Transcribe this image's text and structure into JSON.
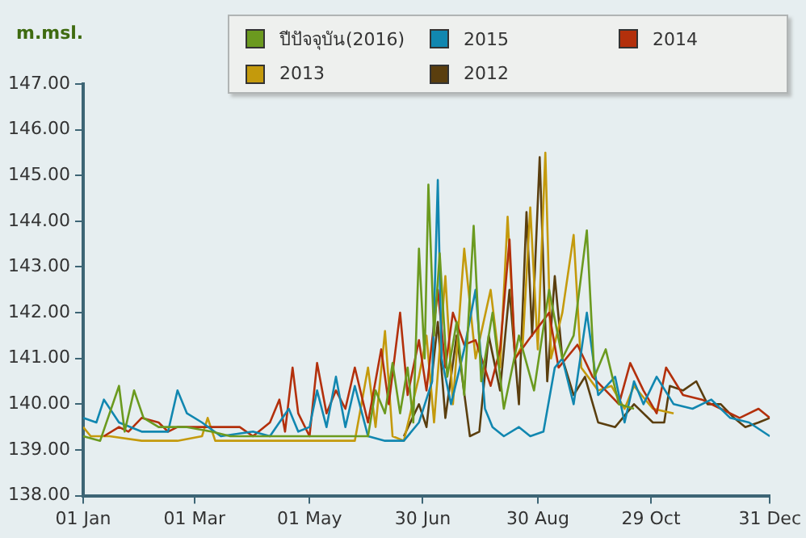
{
  "chart_data": {
    "type": "line",
    "ylabel": "m.msl.",
    "legend": "top right",
    "grid": false,
    "marker": "none",
    "line_style": "solid",
    "xlim": [
      "--01-01",
      "--12-31"
    ],
    "xticks": [
      {
        "value": "--01-01",
        "label": "01 Jan"
      },
      {
        "value": "--03-01",
        "label": "01 Mar"
      },
      {
        "value": "--05-01",
        "label": "01 May"
      },
      {
        "value": "--06-30",
        "label": "30 Jun"
      },
      {
        "value": "--08-30",
        "label": "30 Aug"
      },
      {
        "value": "--10-29",
        "label": "29 Oct"
      },
      {
        "value": "--12-31",
        "label": "31 Dec"
      }
    ],
    "ylim": [
      138,
      147
    ],
    "yticks": [
      {
        "value": 138,
        "label": "138.00"
      },
      {
        "value": 139,
        "label": "139.00"
      },
      {
        "value": 140,
        "label": "140.00"
      },
      {
        "value": 141,
        "label": "141.00"
      },
      {
        "value": 142,
        "label": "142.00"
      },
      {
        "value": 143,
        "label": "143.00"
      },
      {
        "value": 144,
        "label": "144.00"
      },
      {
        "value": 145,
        "label": "145.00"
      },
      {
        "value": 146,
        "label": "146.00"
      },
      {
        "value": 147,
        "label": "147.00"
      }
    ],
    "series": [
      {
        "name": "ปีปัจจุบัน(2016)",
        "color": "#6b9a1f",
        "x": [
          "--01-01",
          "--01-10",
          "--01-20",
          "--01-23",
          "--01-28",
          "--02-02",
          "--02-10",
          "--02-25",
          "--03-10",
          "--03-20",
          "--04-20",
          "--05-20",
          "--06-01",
          "--06-05",
          "--06-10",
          "--06-14",
          "--06-18",
          "--06-22",
          "--06-25",
          "--06-28",
          "--07-01",
          "--07-03",
          "--07-06",
          "--07-09",
          "--07-13",
          "--07-18",
          "--07-22",
          "--07-27",
          "--07-31",
          "--08-06",
          "--08-12",
          "--08-20",
          "--08-28",
          "--09-05",
          "--09-12",
          "--09-18",
          "--09-25",
          "--09-29",
          "--10-05",
          "--10-12",
          "--10-20"
        ],
        "values": [
          139.3,
          139.2,
          140.4,
          139.4,
          140.3,
          139.7,
          139.5,
          139.5,
          139.4,
          139.3,
          139.3,
          139.3,
          139.3,
          140.3,
          139.8,
          140.9,
          139.8,
          140.8,
          139.6,
          143.4,
          141.0,
          144.8,
          141.5,
          143.3,
          140.6,
          141.8,
          140.2,
          143.9,
          140.5,
          142.0,
          139.9,
          141.5,
          140.3,
          142.5,
          141.0,
          141.5,
          143.8,
          140.6,
          141.2,
          140.0,
          139.9
        ]
      },
      {
        "name": "2015",
        "color": "#1187b0",
        "x": [
          "--01-01",
          "--01-08",
          "--01-12",
          "--01-20",
          "--02-01",
          "--02-15",
          "--02-20",
          "--02-25",
          "--03-05",
          "--03-15",
          "--04-01",
          "--04-10",
          "--04-20",
          "--04-25",
          "--05-01",
          "--05-05",
          "--05-10",
          "--05-15",
          "--05-20",
          "--05-25",
          "--06-01",
          "--06-10",
          "--06-20",
          "--06-28",
          "--07-05",
          "--07-08",
          "--07-10",
          "--07-15",
          "--07-22",
          "--07-28",
          "--08-02",
          "--08-06",
          "--08-12",
          "--08-20",
          "--08-26",
          "--09-02",
          "--09-08",
          "--09-12",
          "--09-18",
          "--09-25",
          "--10-01",
          "--10-10",
          "--10-15",
          "--10-20",
          "--10-25",
          "--11-01",
          "--11-10",
          "--11-20",
          "--11-30",
          "--12-10",
          "--12-20",
          "--12-31"
        ],
        "values": [
          139.7,
          139.6,
          140.1,
          139.6,
          139.4,
          139.4,
          140.3,
          139.8,
          139.6,
          139.3,
          139.4,
          139.3,
          139.9,
          139.4,
          139.5,
          140.3,
          139.5,
          140.6,
          139.5,
          140.4,
          139.3,
          139.2,
          139.2,
          139.6,
          140.5,
          144.9,
          141.0,
          140.0,
          141.2,
          142.5,
          139.9,
          139.5,
          139.3,
          139.5,
          139.3,
          139.4,
          140.8,
          141.0,
          140.0,
          142.0,
          140.2,
          140.6,
          139.6,
          140.5,
          140.0,
          140.6,
          140.0,
          139.9,
          140.1,
          139.7,
          139.6,
          139.3
        ]
      },
      {
        "name": "2014",
        "color": "#b3300c",
        "x": [
          "--01-12",
          "--01-20",
          "--01-25",
          "--02-01",
          "--02-10",
          "--02-15",
          "--02-20",
          "--03-10",
          "--03-25",
          "--04-01",
          "--04-10",
          "--04-15",
          "--04-18",
          "--04-22",
          "--04-25",
          "--05-01",
          "--05-05",
          "--05-10",
          "--05-15",
          "--05-20",
          "--05-25",
          "--06-01",
          "--06-08",
          "--06-12",
          "--06-18",
          "--06-22",
          "--06-28",
          "--07-02",
          "--07-08",
          "--07-12",
          "--07-16",
          "--07-22",
          "--07-28",
          "--08-05",
          "--08-10",
          "--08-15",
          "--08-18",
          "--08-25",
          "--09-05",
          "--09-10",
          "--09-20",
          "--09-28",
          "--10-05",
          "--10-12",
          "--10-18",
          "--10-25",
          "--11-01",
          "--11-06",
          "--11-15",
          "--11-25",
          "--12-05",
          "--12-15",
          "--12-25",
          "--12-31"
        ],
        "values": [
          139.3,
          139.5,
          139.4,
          139.7,
          139.6,
          139.4,
          139.5,
          139.5,
          139.5,
          139.3,
          139.6,
          140.1,
          139.4,
          140.8,
          139.8,
          139.3,
          140.9,
          139.8,
          140.3,
          139.9,
          140.8,
          139.6,
          141.2,
          140.0,
          142.0,
          140.2,
          141.4,
          140.3,
          142.5,
          140.8,
          142.0,
          141.3,
          141.4,
          140.4,
          141.2,
          143.6,
          141.0,
          141.4,
          142.0,
          140.8,
          141.3,
          140.6,
          140.3,
          140.0,
          140.9,
          140.3,
          139.8,
          140.8,
          140.2,
          140.1,
          139.9,
          139.7,
          139.9,
          139.7
        ]
      },
      {
        "name": "2013",
        "color": "#c49a0c",
        "x": [
          "--01-01",
          "--01-05",
          "--01-15",
          "--02-01",
          "--02-20",
          "--03-05",
          "--03-08",
          "--03-12",
          "--04-01",
          "--05-01",
          "--05-25",
          "--06-01",
          "--06-05",
          "--06-10",
          "--06-14",
          "--06-20",
          "--06-28",
          "--07-02",
          "--07-06",
          "--07-12",
          "--07-16",
          "--07-22",
          "--07-28",
          "--08-05",
          "--08-10",
          "--08-14",
          "--08-18",
          "--08-22",
          "--08-26",
          "--08-30",
          "--09-03",
          "--09-06",
          "--09-12",
          "--09-18",
          "--09-22",
          "--10-01",
          "--10-08",
          "--10-15",
          "--10-20",
          "--10-30",
          "--11-10"
        ],
        "values": [
          139.5,
          139.3,
          139.3,
          139.2,
          139.2,
          139.3,
          139.7,
          139.2,
          139.2,
          139.2,
          139.2,
          140.8,
          139.5,
          141.6,
          139.3,
          139.2,
          140.6,
          141.5,
          139.6,
          142.8,
          140.0,
          143.4,
          141.0,
          142.5,
          140.8,
          144.1,
          141.0,
          141.3,
          144.3,
          141.2,
          145.5,
          141.0,
          142.0,
          143.7,
          140.8,
          140.3,
          140.4,
          139.9,
          140.4,
          139.9,
          139.8
        ]
      },
      {
        "name": "2012",
        "color": "#5a3e0e",
        "x": [
          "--06-20",
          "--06-28",
          "--07-02",
          "--07-08",
          "--07-12",
          "--07-18",
          "--07-25",
          "--07-30",
          "--08-04",
          "--08-10",
          "--08-15",
          "--08-20",
          "--08-24",
          "--08-27",
          "--08-31",
          "--09-04",
          "--09-08",
          "--09-12",
          "--09-18",
          "--09-24",
          "--10-01",
          "--10-10",
          "--10-20",
          "--10-30",
          "--11-05",
          "--11-08",
          "--11-15",
          "--11-22",
          "--11-28",
          "--12-05",
          "--12-12",
          "--12-18",
          "--12-25",
          "--12-31"
        ],
        "values": [
          139.3,
          140.0,
          139.5,
          141.8,
          139.7,
          141.5,
          139.3,
          139.4,
          141.5,
          140.3,
          142.5,
          140.0,
          144.2,
          141.5,
          145.4,
          140.5,
          142.8,
          141.0,
          140.2,
          140.6,
          139.6,
          139.5,
          140.0,
          139.6,
          139.6,
          140.4,
          140.3,
          140.5,
          140.0,
          140.0,
          139.7,
          139.5,
          139.6,
          139.7
        ]
      }
    ]
  }
}
